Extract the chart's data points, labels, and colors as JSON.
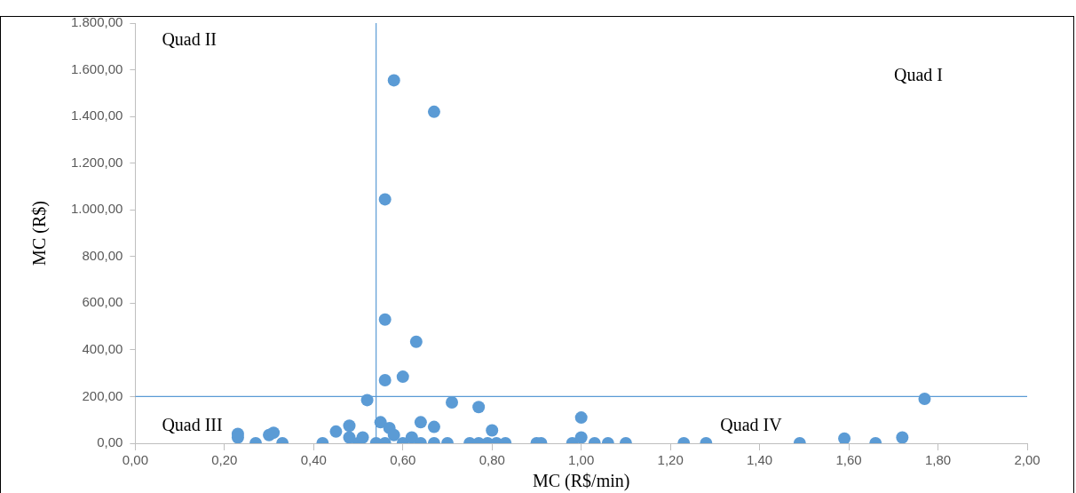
{
  "chart_data": {
    "type": "scatter",
    "xlabel": "MC (R$/min)",
    "ylabel": "MC (R$)",
    "xlim": [
      0,
      2
    ],
    "xticks": [
      {
        "value": 0,
        "label": "0,00"
      },
      {
        "value": 0.2,
        "label": "0,20"
      },
      {
        "value": 0.4,
        "label": "0,40"
      },
      {
        "value": 0.6,
        "label": "0,60"
      },
      {
        "value": 0.8,
        "label": "0,80"
      },
      {
        "value": 1,
        "label": "1,00"
      },
      {
        "value": 1.2,
        "label": "1,20"
      },
      {
        "value": 1.4,
        "label": "1,40"
      },
      {
        "value": 1.6,
        "label": "1,60"
      },
      {
        "value": 1.8,
        "label": "1,80"
      },
      {
        "value": 2,
        "label": "2,00"
      }
    ],
    "ylim": [
      0,
      1800
    ],
    "yticks": [
      {
        "value": 0,
        "label": "0,00"
      },
      {
        "value": 200,
        "label": "200,00"
      },
      {
        "value": 400,
        "label": "400,00"
      },
      {
        "value": 600,
        "label": "600,00"
      },
      {
        "value": 800,
        "label": "800,00"
      },
      {
        "value": 1000,
        "label": "1.000,00"
      },
      {
        "value": 1200,
        "label": "1.200,00"
      },
      {
        "value": 1400,
        "label": "1.400,00"
      },
      {
        "value": 1600,
        "label": "1.600,00"
      },
      {
        "value": 1800,
        "label": "1.800,00"
      }
    ],
    "marker": "circle",
    "legend": false,
    "grid": false,
    "series": [
      {
        "color": "#5b9bd5",
        "x": [
          0.23,
          0.23,
          0.27,
          0.3,
          0.31,
          0.33,
          0.42,
          0.45,
          0.48,
          0.48,
          0.5,
          0.51,
          0.52,
          0.54,
          0.55,
          0.56,
          0.56,
          0.56,
          0.56,
          0.57,
          0.58,
          0.58,
          0.6,
          0.6,
          0.62,
          0.63,
          0.64,
          0.64,
          0.67,
          0.67,
          0.67,
          0.7,
          0.71,
          0.75,
          0.77,
          0.77,
          0.79,
          0.8,
          0.81,
          0.83,
          0.9,
          0.91,
          0.98,
          1.0,
          1.0,
          1.03,
          1.06,
          1.1,
          1.23,
          1.28,
          1.49,
          1.59,
          1.66,
          1.72,
          1.77
        ],
        "values": [
          40,
          25,
          0,
          35,
          45,
          0,
          0,
          50,
          75,
          25,
          0,
          25,
          185,
          0,
          90,
          0,
          270,
          530,
          1045,
          65,
          1555,
          35,
          285,
          0,
          25,
          435,
          0,
          90,
          70,
          1420,
          0,
          0,
          175,
          0,
          0,
          155,
          0,
          55,
          0,
          0,
          0,
          0,
          0,
          110,
          25,
          0,
          0,
          0,
          0,
          0,
          0,
          20,
          0,
          25,
          190
        ]
      }
    ],
    "ref_lines": [
      {
        "axis": "x",
        "value": 0.54,
        "color": "#5b9bd5"
      },
      {
        "axis": "y",
        "value": 200,
        "color": "#5b9bd5"
      }
    ],
    "annotations": [
      "Quad II",
      "Quad I",
      "Quad III",
      "Quad IV"
    ]
  }
}
